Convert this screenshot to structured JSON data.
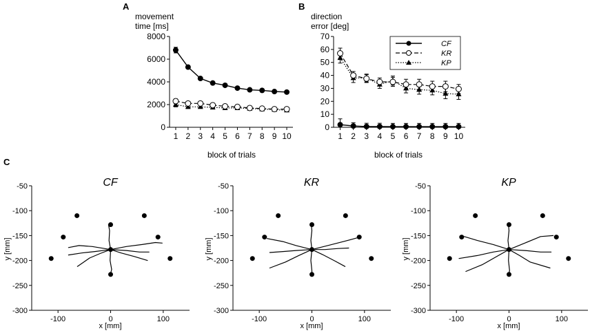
{
  "panels": {
    "a": {
      "letter": "A",
      "ylabel_line1": "movement",
      "ylabel_line2": "time [ms]",
      "xlabel": "block of trials"
    },
    "b": {
      "letter": "B",
      "ylabel_line1": "direction",
      "ylabel_line2": "error [deg]",
      "xlabel": "block of trials",
      "legend": [
        "CF",
        "KR",
        "KP"
      ]
    },
    "c": {
      "letter": "C",
      "xlabel": "x [mm]",
      "ylabel": "y [mm]",
      "titles": [
        "CF",
        "KR",
        "KP"
      ]
    }
  },
  "chart_data": [
    {
      "id": "A",
      "type": "line",
      "xlabel": "block of trials",
      "ylabel": "movement time [ms]",
      "x": [
        1,
        2,
        3,
        4,
        5,
        6,
        7,
        8,
        9,
        10
      ],
      "xticks": [
        1,
        2,
        3,
        4,
        5,
        6,
        7,
        8,
        9,
        10
      ],
      "ylim": [
        0,
        8000
      ],
      "yticks": [
        0,
        2000,
        4000,
        6000,
        8000
      ],
      "series": [
        {
          "name": "CF",
          "values": [
            6800,
            5300,
            4300,
            3900,
            3700,
            3450,
            3300,
            3250,
            3150,
            3100
          ],
          "errors": [
            250,
            120,
            90,
            70,
            60,
            60,
            60,
            60,
            60,
            60
          ]
        },
        {
          "name": "KR",
          "values": [
            2300,
            2100,
            2100,
            1950,
            1850,
            1800,
            1700,
            1650,
            1600,
            1600
          ],
          "errors": [
            200,
            150,
            120,
            110,
            110,
            110,
            110,
            110,
            110,
            110
          ]
        },
        {
          "name": "KP",
          "values": [
            2000,
            1800,
            1800,
            1750,
            1700,
            1700,
            1650,
            1600,
            1550,
            1500
          ],
          "errors": [
            200,
            150,
            140,
            130,
            130,
            120,
            120,
            120,
            120,
            120
          ]
        }
      ]
    },
    {
      "id": "B",
      "type": "line",
      "xlabel": "block of trials",
      "ylabel": "direction error [deg]",
      "x": [
        1,
        2,
        3,
        4,
        5,
        6,
        7,
        8,
        9,
        10
      ],
      "xticks": [
        1,
        2,
        3,
        4,
        5,
        6,
        7,
        8,
        9,
        10
      ],
      "ylim": [
        0,
        70
      ],
      "yticks": [
        0,
        10,
        20,
        30,
        40,
        50,
        60,
        70
      ],
      "legend": "top-right",
      "series": [
        {
          "name": "CF",
          "values": [
            2,
            1,
            0.6,
            0.6,
            0.5,
            0.5,
            0.5,
            0.5,
            0.5,
            0.5
          ],
          "errors": [
            4.5,
            2.5,
            2.5,
            2.5,
            2.5,
            2.5,
            2.5,
            2.5,
            2.5,
            2.5
          ]
        },
        {
          "name": "KR",
          "values": [
            57,
            40,
            37.5,
            35,
            35,
            33,
            33,
            31.5,
            31.5,
            29.5
          ],
          "errors": [
            4,
            3,
            3,
            3,
            3.5,
            4,
            4,
            4,
            4,
            3.5
          ]
        },
        {
          "name": "KP",
          "values": [
            53.5,
            38,
            38,
            33,
            36,
            30,
            29,
            28.5,
            26,
            25.5
          ],
          "errors": [
            4,
            3.5,
            3,
            3,
            3.5,
            3.5,
            3.5,
            3.5,
            4,
            4
          ]
        }
      ]
    },
    {
      "id": "C-CF",
      "type": "scatter",
      "title": "CF",
      "xlabel": "x [mm]",
      "ylabel": "y [mm]",
      "xlim": [
        -150,
        150
      ],
      "ylim": [
        -300,
        -50
      ],
      "xticks": [
        -100,
        0,
        100
      ],
      "yticks": [
        -50,
        -100,
        -150,
        -200,
        -250,
        -300
      ],
      "start": [
        0,
        -178
      ],
      "targets": [
        [
          0,
          -128
        ],
        [
          64,
          -110
        ],
        [
          90,
          -153
        ],
        [
          113,
          -196
        ],
        [
          0,
          -228
        ],
        [
          -113,
          -196
        ],
        [
          -90,
          -153
        ],
        [
          -64,
          -110
        ]
      ],
      "trajectories": [
        [
          [
            0,
            -178
          ],
          [
            -3,
            -160
          ],
          [
            -2,
            -140
          ],
          [
            -4,
            -128
          ]
        ],
        [
          [
            0,
            -178
          ],
          [
            30,
            -172
          ],
          [
            60,
            -168
          ],
          [
            85,
            -164
          ],
          [
            98,
            -165
          ]
        ],
        [
          [
            0,
            -178
          ],
          [
            30,
            -180
          ],
          [
            55,
            -183
          ],
          [
            73,
            -183
          ]
        ],
        [
          [
            0,
            -178
          ],
          [
            20,
            -185
          ],
          [
            45,
            -192
          ],
          [
            70,
            -200
          ]
        ],
        [
          [
            0,
            -178
          ],
          [
            -1,
            -200
          ],
          [
            2,
            -218
          ],
          [
            0,
            -226
          ]
        ],
        [
          [
            0,
            -178
          ],
          [
            -20,
            -186
          ],
          [
            -40,
            -195
          ],
          [
            -63,
            -212
          ]
        ],
        [
          [
            0,
            -178
          ],
          [
            -30,
            -182
          ],
          [
            -55,
            -185
          ],
          [
            -80,
            -189
          ]
        ],
        [
          [
            0,
            -178
          ],
          [
            -35,
            -172
          ],
          [
            -60,
            -170
          ],
          [
            -80,
            -174
          ]
        ]
      ]
    },
    {
      "id": "C-KR",
      "type": "scatter",
      "title": "KR",
      "xlabel": "x [mm]",
      "ylabel": "y [mm]",
      "xlim": [
        -150,
        150
      ],
      "ylim": [
        -300,
        -50
      ],
      "xticks": [
        -100,
        0,
        100
      ],
      "yticks": [
        -50,
        -100,
        -150,
        -200,
        -250,
        -300
      ],
      "start": [
        0,
        -178
      ],
      "targets": [
        [
          0,
          -128
        ],
        [
          64,
          -110
        ],
        [
          90,
          -153
        ],
        [
          113,
          -196
        ],
        [
          0,
          -228
        ],
        [
          -113,
          -196
        ],
        [
          -90,
          -153
        ],
        [
          -64,
          -110
        ]
      ],
      "trajectories": [
        [
          [
            0,
            -178
          ],
          [
            -2,
            -160
          ],
          [
            0,
            -140
          ],
          [
            -1,
            -128
          ]
        ],
        [
          [
            0,
            -178
          ],
          [
            30,
            -170
          ],
          [
            60,
            -162
          ],
          [
            88,
            -154
          ]
        ],
        [
          [
            0,
            -178
          ],
          [
            25,
            -178
          ],
          [
            50,
            -176
          ],
          [
            70,
            -175
          ]
        ],
        [
          [
            0,
            -178
          ],
          [
            20,
            -188
          ],
          [
            42,
            -200
          ],
          [
            63,
            -212
          ]
        ],
        [
          [
            0,
            -178
          ],
          [
            -2,
            -200
          ],
          [
            0,
            -220
          ],
          [
            0,
            -226
          ]
        ],
        [
          [
            0,
            -178
          ],
          [
            -25,
            -190
          ],
          [
            -50,
            -203
          ],
          [
            -80,
            -215
          ]
        ],
        [
          [
            0,
            -178
          ],
          [
            -30,
            -180
          ],
          [
            -55,
            -182
          ],
          [
            -80,
            -184
          ]
        ],
        [
          [
            0,
            -178
          ],
          [
            -30,
            -170
          ],
          [
            -55,
            -162
          ],
          [
            -85,
            -156
          ]
        ]
      ]
    },
    {
      "id": "C-KP",
      "type": "scatter",
      "title": "KP",
      "xlabel": "x [mm]",
      "ylabel": "y [mm]",
      "xlim": [
        -150,
        150
      ],
      "ylim": [
        -300,
        -50
      ],
      "xticks": [
        -100,
        0,
        100
      ],
      "yticks": [
        -50,
        -100,
        -150,
        -200,
        -250,
        -300
      ],
      "start": [
        0,
        -178
      ],
      "targets": [
        [
          0,
          -128
        ],
        [
          64,
          -110
        ],
        [
          90,
          -153
        ],
        [
          113,
          -196
        ],
        [
          0,
          -228
        ],
        [
          -113,
          -196
        ],
        [
          -90,
          -153
        ],
        [
          -64,
          -110
        ]
      ],
      "trajectories": [
        [
          [
            0,
            -178
          ],
          [
            -2,
            -160
          ],
          [
            0,
            -140
          ],
          [
            -1,
            -128
          ]
        ],
        [
          [
            0,
            -178
          ],
          [
            30,
            -165
          ],
          [
            60,
            -152
          ],
          [
            84,
            -150
          ]
        ],
        [
          [
            0,
            -178
          ],
          [
            30,
            -180
          ],
          [
            60,
            -183
          ],
          [
            80,
            -183
          ]
        ],
        [
          [
            0,
            -178
          ],
          [
            20,
            -190
          ],
          [
            40,
            -203
          ],
          [
            78,
            -215
          ]
        ],
        [
          [
            0,
            -178
          ],
          [
            -1,
            -200
          ],
          [
            1,
            -220
          ],
          [
            0,
            -226
          ]
        ],
        [
          [
            0,
            -178
          ],
          [
            -25,
            -193
          ],
          [
            -50,
            -208
          ],
          [
            -82,
            -222
          ]
        ],
        [
          [
            0,
            -178
          ],
          [
            -30,
            -183
          ],
          [
            -60,
            -190
          ],
          [
            -95,
            -196
          ]
        ],
        [
          [
            0,
            -178
          ],
          [
            -30,
            -168
          ],
          [
            -60,
            -160
          ],
          [
            -85,
            -152
          ]
        ]
      ]
    }
  ]
}
